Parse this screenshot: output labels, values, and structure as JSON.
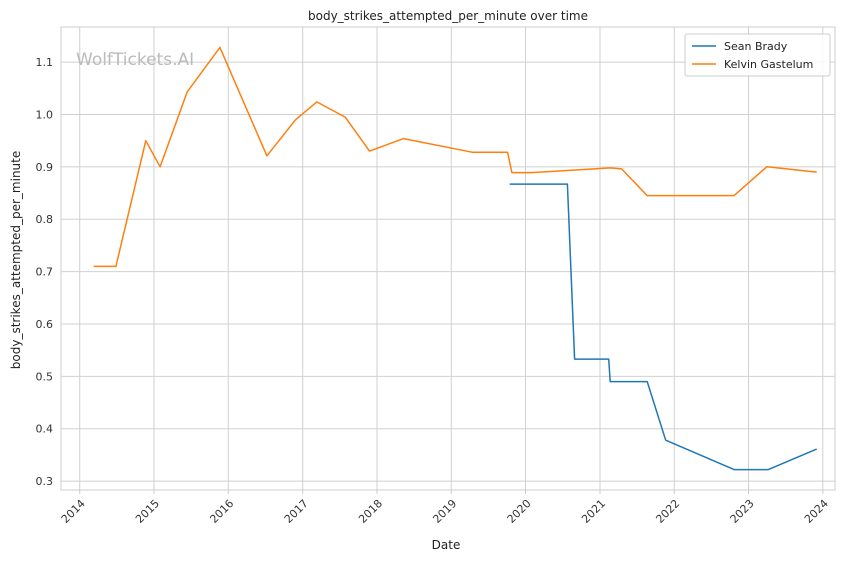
{
  "chart_data": {
    "type": "line",
    "title": "body_strikes_attempted_per_minute over time",
    "xlabel": "Date",
    "ylabel": "body_strikes_attempted_per_minute",
    "x_ticks": [
      "2014",
      "2015",
      "2016",
      "2017",
      "2018",
      "2019",
      "2020",
      "2021",
      "2022",
      "2023",
      "2024"
    ],
    "y_ticks": [
      "0.3",
      "0.4",
      "0.5",
      "0.6",
      "0.7",
      "0.8",
      "0.9",
      "1.0",
      "1.1"
    ],
    "xlim": [
      "2013-10-01",
      "2024-03-01"
    ],
    "ylim": [
      0.283,
      1.167
    ],
    "grid": true,
    "legend_position": "top-right",
    "watermark": "WolfTickets.AI",
    "series": [
      {
        "name": "Sean Brady",
        "color": "#1f77b4",
        "points": [
          [
            "2019-10-15",
            0.867
          ],
          [
            "2020-07-25",
            0.867
          ],
          [
            "2020-08-29",
            0.533
          ],
          [
            "2021-02-13",
            0.533
          ],
          [
            "2021-02-20",
            0.49
          ],
          [
            "2021-08-21",
            0.49
          ],
          [
            "2021-11-20",
            0.378
          ],
          [
            "2022-10-22",
            0.322
          ],
          [
            "2023-04-08",
            0.322
          ],
          [
            "2023-12-02",
            0.361
          ]
        ]
      },
      {
        "name": "Kelvin Gastelum",
        "color": "#ff7f0e",
        "points": [
          [
            "2014-03-10",
            0.71
          ],
          [
            "2014-06-28",
            0.71
          ],
          [
            "2014-11-22",
            0.95
          ],
          [
            "2015-01-31",
            0.9
          ],
          [
            "2015-06-13",
            1.043
          ],
          [
            "2015-11-21",
            1.128
          ],
          [
            "2016-07-09",
            0.921
          ],
          [
            "2016-11-27",
            0.99
          ],
          [
            "2017-03-11",
            1.024
          ],
          [
            "2017-07-29",
            0.995
          ],
          [
            "2017-11-25",
            0.93
          ],
          [
            "2018-05-12",
            0.954
          ],
          [
            "2019-04-13",
            0.928
          ],
          [
            "2019-10-05",
            0.928
          ],
          [
            "2019-10-26",
            0.889
          ],
          [
            "2020-02-01",
            0.889
          ],
          [
            "2020-07-25",
            0.893
          ],
          [
            "2021-02-20",
            0.898
          ],
          [
            "2021-04-17",
            0.896
          ],
          [
            "2021-08-21",
            0.845
          ],
          [
            "2022-10-22",
            0.845
          ],
          [
            "2023-04-01",
            0.9
          ],
          [
            "2023-12-02",
            0.89
          ]
        ]
      }
    ]
  }
}
